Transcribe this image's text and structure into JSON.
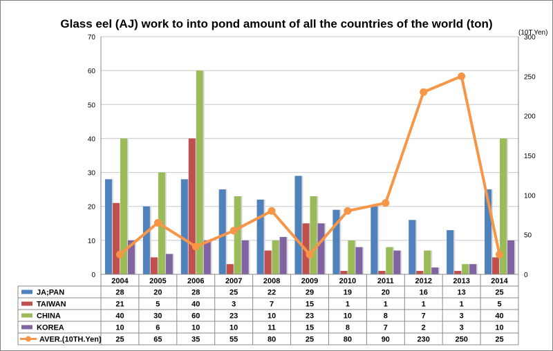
{
  "chart_data": {
    "type": "bar",
    "title": "Glass eel (AJ) work to into  pond amount of all the countries of the world (ton)",
    "right_axis_unit": "(10T.Yen)",
    "categories": [
      "2004",
      "2005",
      "2006",
      "2007",
      "2008",
      "2009",
      "2010",
      "2011",
      "2012",
      "2013",
      "2014"
    ],
    "series": [
      {
        "name": "JA;PAN",
        "kind": "bar",
        "axis": "left",
        "color": "#4f81bd",
        "values": [
          28,
          20,
          28,
          25,
          22,
          29,
          19,
          20,
          16,
          13,
          25
        ]
      },
      {
        "name": "TAIWAN",
        "kind": "bar",
        "axis": "left",
        "color": "#c0504d",
        "values": [
          21,
          5,
          40,
          3,
          7,
          15,
          1,
          1,
          1,
          1,
          5
        ]
      },
      {
        "name": "CHINA",
        "kind": "bar",
        "axis": "left",
        "color": "#9bbb59",
        "values": [
          40,
          30,
          60,
          23,
          10,
          23,
          10,
          8,
          7,
          3,
          40
        ]
      },
      {
        "name": "KOREA",
        "kind": "bar",
        "axis": "left",
        "color": "#8064a2",
        "values": [
          10,
          6,
          10,
          10,
          11,
          15,
          8,
          7,
          2,
          3,
          10
        ]
      },
      {
        "name": "AVER.(10TH.Yen)",
        "kind": "line",
        "axis": "right",
        "color": "#f79646",
        "values": [
          25,
          65,
          35,
          55,
          80,
          25,
          80,
          90,
          230,
          250,
          25
        ]
      }
    ],
    "y_left": {
      "min": 0,
      "max": 70,
      "ticks": [
        "0",
        "10",
        "20",
        "30",
        "40",
        "50",
        "60",
        "70"
      ]
    },
    "y_right": {
      "min": 0,
      "max": 300,
      "ticks": [
        "0",
        "50",
        "100",
        "150",
        "200",
        "250",
        "300"
      ]
    },
    "grid": true,
    "legend": "data-table-below"
  }
}
